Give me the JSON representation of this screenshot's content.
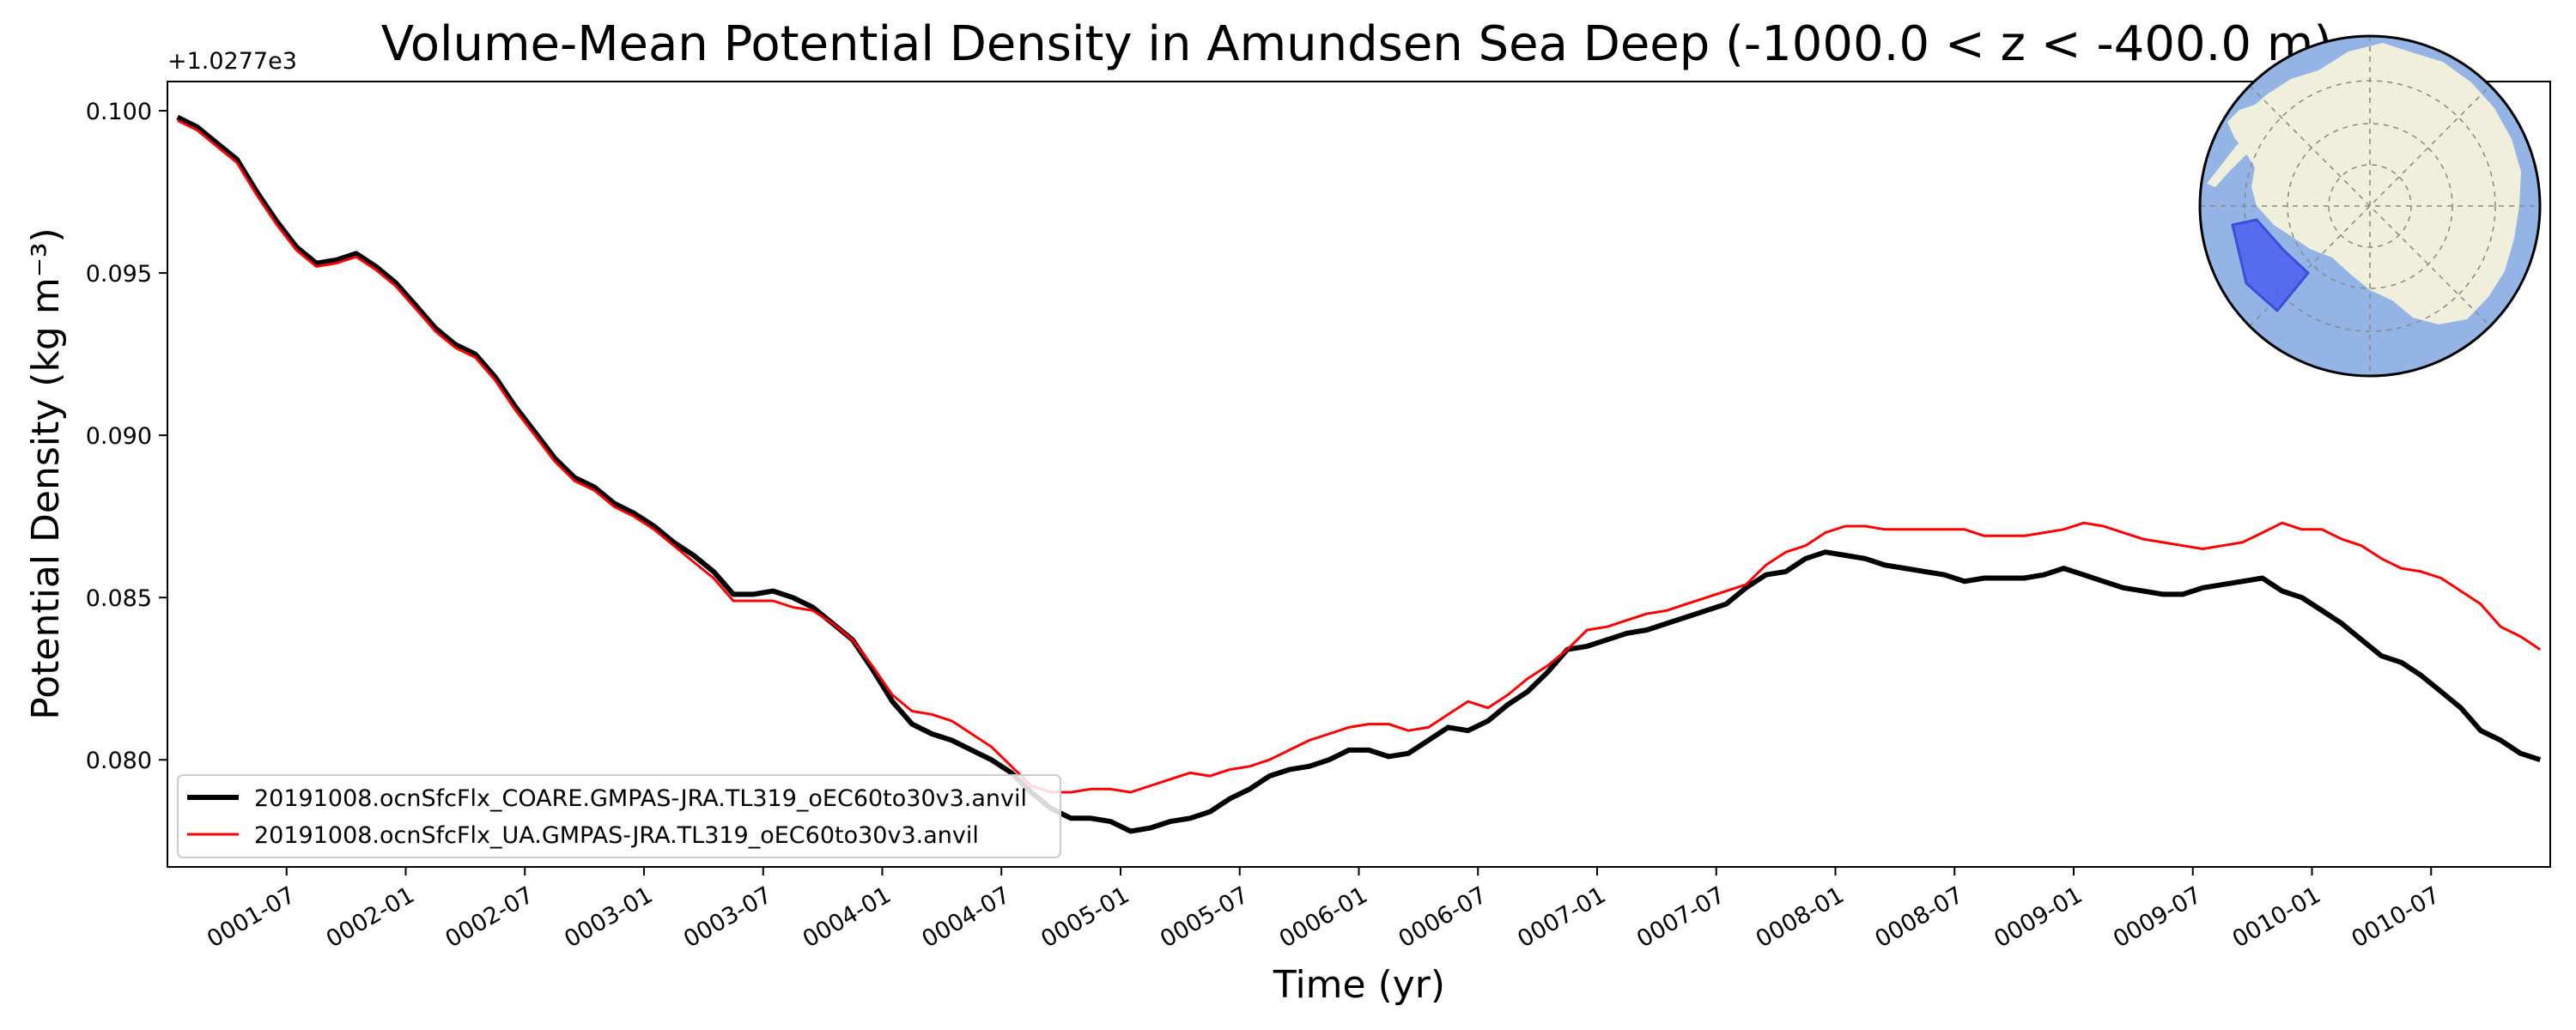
{
  "chart_data": {
    "type": "line",
    "title": "Volume-Mean Potential Density in Amundsen Sea Deep (-1000.0 < z < -400.0 m)",
    "xlabel": "Time (yr)",
    "ylabel": "Potential Density (kg m⁻³)",
    "y_offset_label": "+1.0277e3",
    "xlim": [
      0.0,
      10.0
    ],
    "ylim": [
      0.0767,
      0.1009
    ],
    "x_ticks": [
      {
        "value": 0.5,
        "label": "0001-07"
      },
      {
        "value": 1.0,
        "label": "0002-01"
      },
      {
        "value": 1.5,
        "label": "0002-07"
      },
      {
        "value": 2.0,
        "label": "0003-01"
      },
      {
        "value": 2.5,
        "label": "0003-07"
      },
      {
        "value": 3.0,
        "label": "0004-01"
      },
      {
        "value": 3.5,
        "label": "0004-07"
      },
      {
        "value": 4.0,
        "label": "0005-01"
      },
      {
        "value": 4.5,
        "label": "0005-07"
      },
      {
        "value": 5.0,
        "label": "0006-01"
      },
      {
        "value": 5.5,
        "label": "0006-07"
      },
      {
        "value": 6.0,
        "label": "0007-01"
      },
      {
        "value": 6.5,
        "label": "0007-07"
      },
      {
        "value": 7.0,
        "label": "0008-01"
      },
      {
        "value": 7.5,
        "label": "0008-07"
      },
      {
        "value": 8.0,
        "label": "0009-01"
      },
      {
        "value": 8.5,
        "label": "0009-07"
      },
      {
        "value": 9.0,
        "label": "0010-01"
      },
      {
        "value": 9.5,
        "label": "0010-07"
      }
    ],
    "y_ticks": [
      {
        "value": 0.08,
        "label": "0.080"
      },
      {
        "value": 0.085,
        "label": "0.085"
      },
      {
        "value": 0.09,
        "label": "0.090"
      },
      {
        "value": 0.095,
        "label": "0.095"
      },
      {
        "value": 0.1,
        "label": "0.100"
      }
    ],
    "grid": false,
    "legend_position": "lower-left",
    "series": [
      {
        "name": "20191008.ocnSfcFlx_COARE.GMPAS-JRA.TL319_oEC60to30v3.anvil",
        "color": "#000000",
        "x": [
          0.042,
          0.125,
          0.208,
          0.292,
          0.375,
          0.458,
          0.542,
          0.625,
          0.708,
          0.792,
          0.875,
          0.958,
          1.042,
          1.125,
          1.208,
          1.292,
          1.375,
          1.458,
          1.542,
          1.625,
          1.708,
          1.792,
          1.875,
          1.958,
          2.042,
          2.125,
          2.208,
          2.292,
          2.375,
          2.458,
          2.542,
          2.625,
          2.708,
          2.792,
          2.875,
          2.958,
          3.042,
          3.125,
          3.208,
          3.292,
          3.375,
          3.458,
          3.542,
          3.625,
          3.708,
          3.792,
          3.875,
          3.958,
          4.042,
          4.125,
          4.208,
          4.292,
          4.375,
          4.458,
          4.542,
          4.625,
          4.708,
          4.792,
          4.875,
          4.958,
          5.042,
          5.125,
          5.208,
          5.292,
          5.375,
          5.458,
          5.542,
          5.625,
          5.708,
          5.792,
          5.875,
          5.958,
          6.042,
          6.125,
          6.208,
          6.292,
          6.375,
          6.458,
          6.542,
          6.625,
          6.708,
          6.792,
          6.875,
          6.958,
          7.042,
          7.125,
          7.208,
          7.292,
          7.375,
          7.458,
          7.542,
          7.625,
          7.708,
          7.792,
          7.875,
          7.958,
          8.042,
          8.125,
          8.208,
          8.292,
          8.375,
          8.458,
          8.542,
          8.625,
          8.708,
          8.792,
          8.875,
          8.958,
          9.042,
          9.125,
          9.208,
          9.292,
          9.375,
          9.458,
          9.542,
          9.625,
          9.708,
          9.792,
          9.875,
          9.958
        ],
        "values": [
          0.0998,
          0.0995,
          0.099,
          0.0985,
          0.0975,
          0.0966,
          0.0958,
          0.0953,
          0.0954,
          0.0956,
          0.0952,
          0.0947,
          0.094,
          0.0933,
          0.0928,
          0.0925,
          0.0918,
          0.0909,
          0.0901,
          0.0893,
          0.0887,
          0.0884,
          0.0879,
          0.0876,
          0.0872,
          0.0867,
          0.0863,
          0.0858,
          0.0851,
          0.0851,
          0.0852,
          0.085,
          0.0847,
          0.0842,
          0.0837,
          0.0828,
          0.0818,
          0.0811,
          0.0808,
          0.0806,
          0.0803,
          0.08,
          0.0796,
          0.079,
          0.0785,
          0.0782,
          0.0782,
          0.0781,
          0.0778,
          0.0779,
          0.0781,
          0.0782,
          0.0784,
          0.0788,
          0.0791,
          0.0795,
          0.0797,
          0.0798,
          0.08,
          0.0803,
          0.0803,
          0.0801,
          0.0802,
          0.0806,
          0.081,
          0.0809,
          0.0812,
          0.0817,
          0.0821,
          0.0827,
          0.0834,
          0.0835,
          0.0837,
          0.0839,
          0.084,
          0.0842,
          0.0844,
          0.0846,
          0.0848,
          0.0853,
          0.0857,
          0.0858,
          0.0862,
          0.0864,
          0.0863,
          0.0862,
          0.086,
          0.0859,
          0.0858,
          0.0857,
          0.0855,
          0.0856,
          0.0856,
          0.0856,
          0.0857,
          0.0859,
          0.0857,
          0.0855,
          0.0853,
          0.0852,
          0.0851,
          0.0851,
          0.0853,
          0.0854,
          0.0855,
          0.0856,
          0.0852,
          0.085,
          0.0846,
          0.0842,
          0.0837,
          0.0832,
          0.083,
          0.0826,
          0.0821,
          0.0816,
          0.0809,
          0.0806,
          0.0802,
          0.08
        ]
      },
      {
        "name": "20191008.ocnSfcFlx_UA.GMPAS-JRA.TL319_oEC60to30v3.anvil",
        "color": "#ff0000",
        "x": [
          0.042,
          0.125,
          0.208,
          0.292,
          0.375,
          0.458,
          0.542,
          0.625,
          0.708,
          0.792,
          0.875,
          0.958,
          1.042,
          1.125,
          1.208,
          1.292,
          1.375,
          1.458,
          1.542,
          1.625,
          1.708,
          1.792,
          1.875,
          1.958,
          2.042,
          2.125,
          2.208,
          2.292,
          2.375,
          2.458,
          2.542,
          2.625,
          2.708,
          2.792,
          2.875,
          2.958,
          3.042,
          3.125,
          3.208,
          3.292,
          3.375,
          3.458,
          3.542,
          3.625,
          3.708,
          3.792,
          3.875,
          3.958,
          4.042,
          4.125,
          4.208,
          4.292,
          4.375,
          4.458,
          4.542,
          4.625,
          4.708,
          4.792,
          4.875,
          4.958,
          5.042,
          5.125,
          5.208,
          5.292,
          5.375,
          5.458,
          5.542,
          5.625,
          5.708,
          5.792,
          5.875,
          5.958,
          6.042,
          6.125,
          6.208,
          6.292,
          6.375,
          6.458,
          6.542,
          6.625,
          6.708,
          6.792,
          6.875,
          6.958,
          7.042,
          7.125,
          7.208,
          7.292,
          7.375,
          7.458,
          7.542,
          7.625,
          7.708,
          7.792,
          7.875,
          7.958,
          8.042,
          8.125,
          8.208,
          8.292,
          8.375,
          8.458,
          8.542,
          8.625,
          8.708,
          8.792,
          8.875,
          8.958,
          9.042,
          9.125,
          9.208,
          9.292,
          9.375,
          9.458,
          9.542,
          9.625,
          9.708,
          9.792,
          9.875,
          9.958
        ],
        "values": [
          0.0997,
          0.0994,
          0.0989,
          0.0984,
          0.0974,
          0.0965,
          0.0957,
          0.0952,
          0.0953,
          0.0955,
          0.0951,
          0.0946,
          0.0939,
          0.0932,
          0.0927,
          0.0924,
          0.0917,
          0.0908,
          0.09,
          0.0892,
          0.0886,
          0.0883,
          0.0878,
          0.0875,
          0.0871,
          0.0866,
          0.0861,
          0.0856,
          0.0849,
          0.0849,
          0.0849,
          0.0847,
          0.0846,
          0.0842,
          0.0837,
          0.0829,
          0.082,
          0.0815,
          0.0814,
          0.0812,
          0.0808,
          0.0804,
          0.0798,
          0.0792,
          0.079,
          0.079,
          0.0791,
          0.0791,
          0.079,
          0.0792,
          0.0794,
          0.0796,
          0.0795,
          0.0797,
          0.0798,
          0.08,
          0.0803,
          0.0806,
          0.0808,
          0.081,
          0.0811,
          0.0811,
          0.0809,
          0.081,
          0.0814,
          0.0818,
          0.0816,
          0.082,
          0.0825,
          0.0829,
          0.0834,
          0.084,
          0.0841,
          0.0843,
          0.0845,
          0.0846,
          0.0848,
          0.085,
          0.0852,
          0.0854,
          0.086,
          0.0864,
          0.0866,
          0.087,
          0.0872,
          0.0872,
          0.0871,
          0.0871,
          0.0871,
          0.0871,
          0.0871,
          0.0869,
          0.0869,
          0.0869,
          0.087,
          0.0871,
          0.0873,
          0.0872,
          0.087,
          0.0868,
          0.0867,
          0.0866,
          0.0865,
          0.0866,
          0.0867,
          0.087,
          0.0873,
          0.0871,
          0.0871,
          0.0868,
          0.0866,
          0.0862,
          0.0859,
          0.0858,
          0.0856,
          0.0852,
          0.0848,
          0.0841,
          0.0838,
          0.0834
        ]
      }
    ]
  },
  "inset_map": {
    "ocean_color": "#94b4e6",
    "land_color": "#f0efdc",
    "region_color": "#4b5ff0"
  }
}
